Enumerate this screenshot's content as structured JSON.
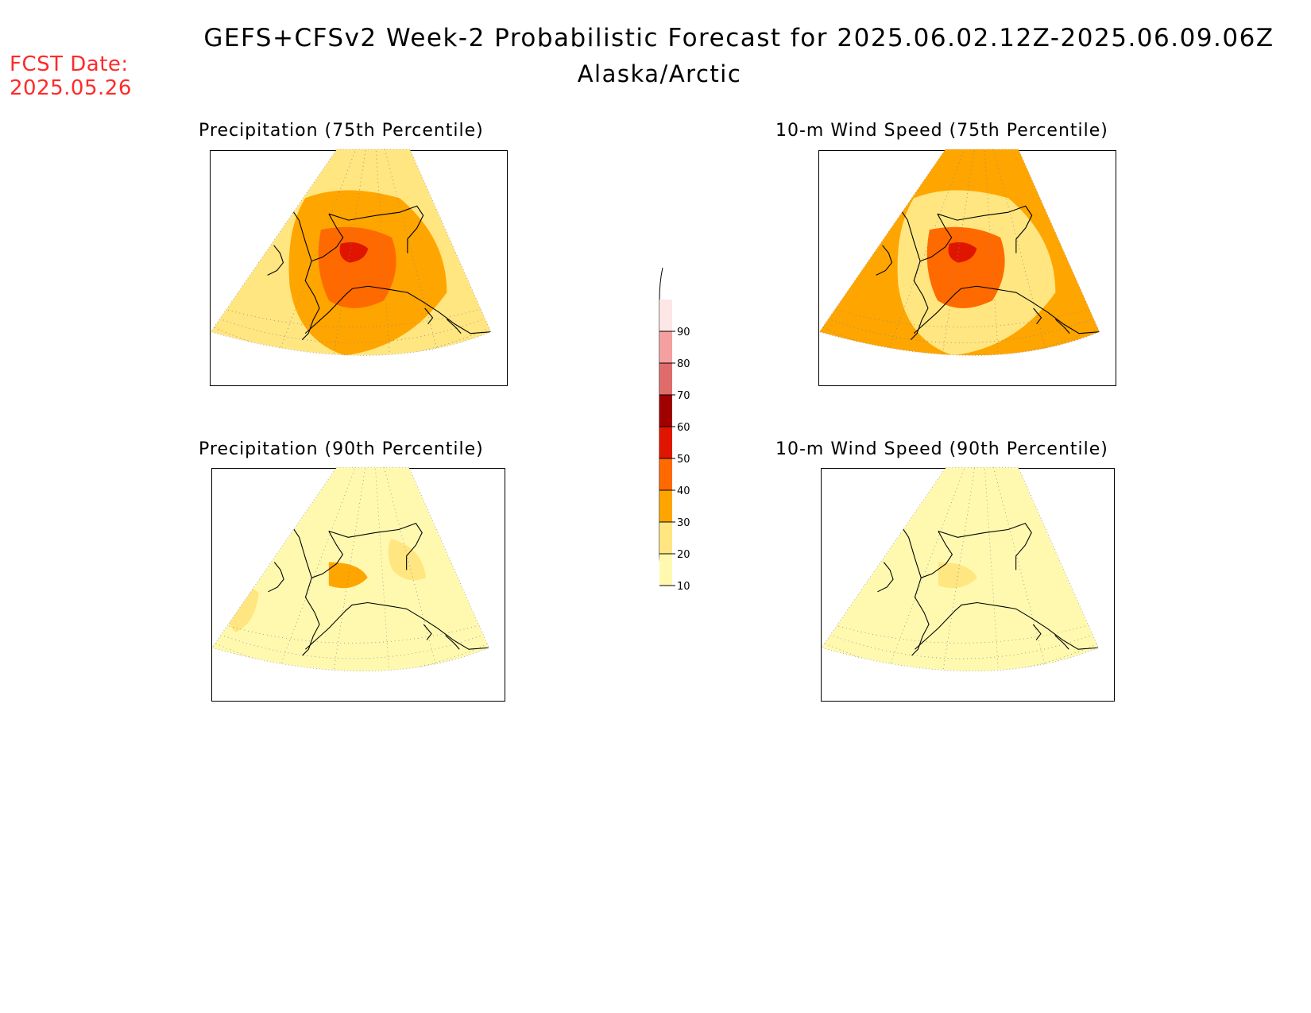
{
  "header": {
    "title": "GEFS+CFSv2 Week-2 Probabilistic Forecast for 2025.06.02.12Z-2025.06.09.06Z",
    "subtitle": "Alaska/Arctic",
    "fcst_label": "FCST Date:",
    "fcst_date": "2025.05.26"
  },
  "panels": [
    {
      "id": "precip75",
      "title": "Precipitation (75th Percentile)",
      "level": "high"
    },
    {
      "id": "wind75",
      "title": "10-m Wind Speed (75th Percentile)",
      "level": "high"
    },
    {
      "id": "precip90",
      "title": "Precipitation (90th Percentile)",
      "level": "low"
    },
    {
      "id": "wind90",
      "title": "10-m Wind Speed (90th Percentile)",
      "level": "low"
    }
  ],
  "colorbar": {
    "ticks": [
      "10",
      "20",
      "30",
      "40",
      "50",
      "60",
      "70",
      "80",
      "90"
    ],
    "colors": [
      "#fff9b0",
      "#ffe680",
      "#ffa500",
      "#ff6a00",
      "#e01500",
      "#a00000",
      "#e06b6b",
      "#f5a0a0",
      "#fde6e6"
    ]
  }
}
